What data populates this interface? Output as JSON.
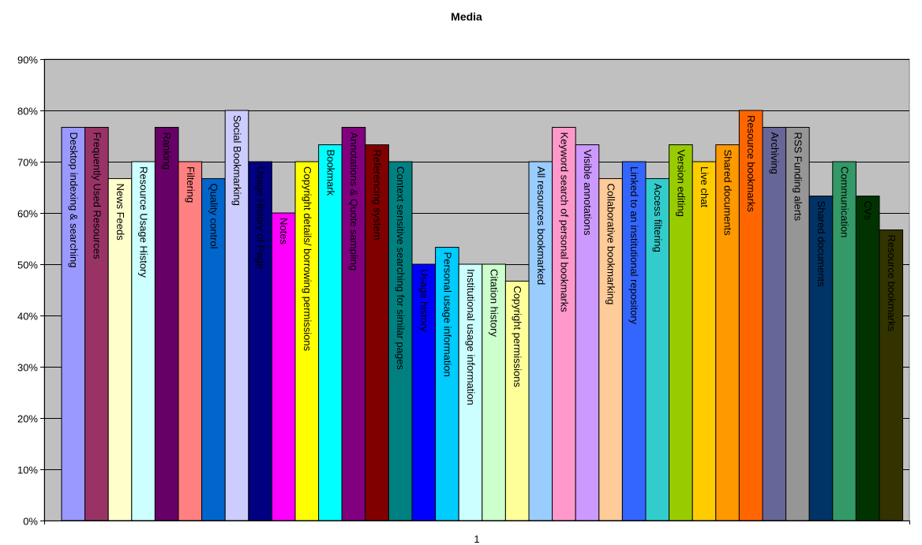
{
  "chart_data": {
    "type": "bar",
    "title": "Media",
    "xlabel": "",
    "ylabel": "",
    "categories": [
      "1"
    ],
    "ylim": [
      0,
      0.9
    ],
    "yticks": [
      "0%",
      "10%",
      "20%",
      "30%",
      "40%",
      "50%",
      "60%",
      "70%",
      "80%",
      "90%"
    ],
    "grid": true,
    "plot_background": "#c0c0c0",
    "series": [
      {
        "name": "Desktop indexing & searching",
        "value": 0.767,
        "color": "#9999ff",
        "text_color": "#000000"
      },
      {
        "name": "Frequently Used Resources",
        "value": 0.767,
        "color": "#993366",
        "text_color": "#000000"
      },
      {
        "name": "News Feeds",
        "value": 0.667,
        "color": "#ffffcc",
        "text_color": "#000000"
      },
      {
        "name": "Resource Usage History",
        "value": 0.7,
        "color": "#ccffff",
        "text_color": "#000000"
      },
      {
        "name": "Ranking",
        "value": 0.767,
        "color": "#660066",
        "text_color": "#000000"
      },
      {
        "name": "Filtering",
        "value": 0.7,
        "color": "#ff8080",
        "text_color": "#000000"
      },
      {
        "name": "Quality control",
        "value": 0.667,
        "color": "#0066cc",
        "text_color": "#000000"
      },
      {
        "name": "Social Bookmarking",
        "value": 0.8,
        "color": "#ccccff",
        "text_color": "#000000"
      },
      {
        "name": "Usage History of Page",
        "value": 0.7,
        "color": "#000080",
        "text_color": "#000000"
      },
      {
        "name": "Notes",
        "value": 0.6,
        "color": "#ff00ff",
        "text_color": "#000000"
      },
      {
        "name": "Copyright details/ borrowing permissions",
        "value": 0.7,
        "color": "#ffff00",
        "text_color": "#000000"
      },
      {
        "name": "Bookmark",
        "value": 0.733,
        "color": "#00ffff",
        "text_color": "#000000"
      },
      {
        "name": "Annotations & Quote sampling",
        "value": 0.767,
        "color": "#800080",
        "text_color": "#000000"
      },
      {
        "name": "Referencing system",
        "value": 0.733,
        "color": "#800000",
        "text_color": "#000000"
      },
      {
        "name": "Context sensitive searching for similar pages",
        "value": 0.7,
        "color": "#008080",
        "text_color": "#000000"
      },
      {
        "name": "Usage history",
        "value": 0.5,
        "color": "#0000ff",
        "text_color": "#000000"
      },
      {
        "name": "Personal usage information",
        "value": 0.533,
        "color": "#00ccff",
        "text_color": "#000000"
      },
      {
        "name": "Institutional usage information",
        "value": 0.5,
        "color": "#ccffff",
        "text_color": "#000000"
      },
      {
        "name": "Citation history",
        "value": 0.5,
        "color": "#ccffcc",
        "text_color": "#000000"
      },
      {
        "name": "Copyright permissions",
        "value": 0.467,
        "color": "#ffff99",
        "text_color": "#000000"
      },
      {
        "name": "All resources bookmarked",
        "value": 0.7,
        "color": "#99ccff",
        "text_color": "#000000"
      },
      {
        "name": "Keyword search of personal bookmarks",
        "value": 0.767,
        "color": "#ff99cc",
        "text_color": "#000000"
      },
      {
        "name": "Visible annotations",
        "value": 0.733,
        "color": "#cc99ff",
        "text_color": "#000000"
      },
      {
        "name": "Collaborative bookmarking",
        "value": 0.667,
        "color": "#ffcc99",
        "text_color": "#000000"
      },
      {
        "name": "Linked to an institutional repository",
        "value": 0.7,
        "color": "#3366ff",
        "text_color": "#000000"
      },
      {
        "name": "Access filtering",
        "value": 0.667,
        "color": "#33cccc",
        "text_color": "#000000"
      },
      {
        "name": "Version editing",
        "value": 0.733,
        "color": "#99cc00",
        "text_color": "#000000"
      },
      {
        "name": "Live chat",
        "value": 0.7,
        "color": "#ffcc00",
        "text_color": "#000000"
      },
      {
        "name": "Shared documents",
        "value": 0.733,
        "color": "#ff9900",
        "text_color": "#000000"
      },
      {
        "name": "Resource bookmarks",
        "value": 0.8,
        "color": "#ff6600",
        "text_color": "#000000"
      },
      {
        "name": "Archiving",
        "value": 0.767,
        "color": "#666699",
        "text_color": "#000000"
      },
      {
        "name": "RSS Funding alerts",
        "value": 0.767,
        "color": "#969696",
        "text_color": "#000000"
      },
      {
        "name": "Shared documents",
        "value": 0.633,
        "color": "#003366",
        "text_color": "#000000"
      },
      {
        "name": "Communication",
        "value": 0.7,
        "color": "#339966",
        "text_color": "#000000"
      },
      {
        "name": "CVs",
        "value": 0.633,
        "color": "#003300",
        "text_color": "#000000"
      },
      {
        "name": "Resource bookmarks",
        "value": 0.567,
        "color": "#333300",
        "text_color": "#000000"
      }
    ]
  }
}
